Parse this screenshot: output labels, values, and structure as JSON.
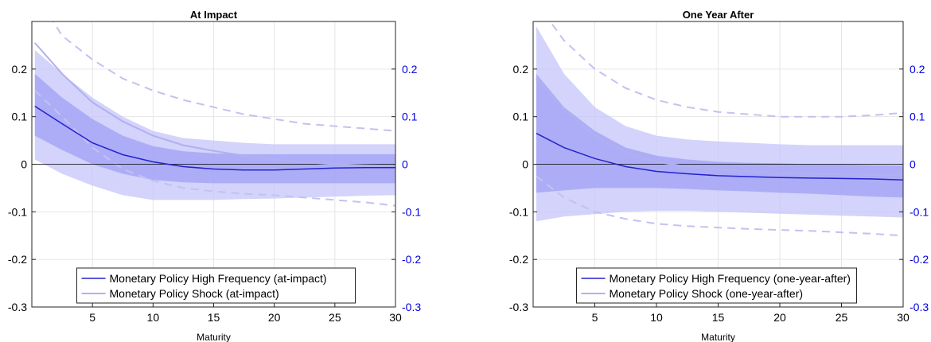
{
  "colors": {
    "hf_line": "#2222cc",
    "hf_band_outer": "#c4c4fa",
    "hf_band_inner": "#9c9cf5",
    "shock_line": "#b0b0f0",
    "shock_dashed": "#c2c2f0",
    "right_axis": "#0000e0",
    "grid": "#e6e6e6"
  },
  "chart_data": [
    {
      "type": "line",
      "title": "At Impact",
      "xlabel": "Maturity",
      "ylabel": "",
      "xlim": [
        0,
        30
      ],
      "ylim": [
        -0.3,
        0.3
      ],
      "x_ticks": [
        5,
        10,
        15,
        20,
        25,
        30
      ],
      "x_tick_labels": [
        "5",
        "10",
        "15",
        "20",
        "25",
        "30"
      ],
      "y_ticks": [
        -0.3,
        -0.2,
        -0.1,
        0,
        0.1,
        0.2
      ],
      "y_tick_labels": [
        "-0.3",
        "-0.2",
        "-0.1",
        "0",
        "0.1",
        "0.2"
      ],
      "y2_ticks": [
        -0.3,
        -0.2,
        -0.1,
        0,
        0.1,
        0.2
      ],
      "y2_tick_labels": [
        "-0.3",
        "-0.2",
        "-0.1",
        "0",
        "0.1",
        "0.2"
      ],
      "grid": true,
      "zero_line": true,
      "legend_position": "bottom-center",
      "x": [
        0.25,
        2.5,
        5,
        7.5,
        10,
        12.5,
        15,
        17.5,
        20,
        22.5,
        25,
        27.5,
        30
      ],
      "series": [
        {
          "name": "Monetary Policy High Frequency (at-impact)",
          "style": "hf",
          "values": [
            0.122,
            0.085,
            0.045,
            0.02,
            0.005,
            -0.005,
            -0.01,
            -0.012,
            -0.012,
            -0.01,
            -0.008,
            -0.007,
            -0.007
          ],
          "band_outer_upper": [
            0.24,
            0.19,
            0.14,
            0.1,
            0.07,
            0.055,
            0.05,
            0.045,
            0.042,
            0.042,
            0.042,
            0.042,
            0.042
          ],
          "band_outer_lower": [
            0.01,
            -0.02,
            -0.045,
            -0.065,
            -0.075,
            -0.075,
            -0.075,
            -0.073,
            -0.072,
            -0.07,
            -0.068,
            -0.066,
            -0.065
          ],
          "band_inner_upper": [
            0.19,
            0.14,
            0.095,
            0.06,
            0.038,
            0.027,
            0.023,
            0.021,
            0.021,
            0.021,
            0.021,
            0.021,
            0.021
          ],
          "band_inner_lower": [
            0.06,
            0.03,
            0.0,
            -0.02,
            -0.033,
            -0.038,
            -0.04,
            -0.04,
            -0.04,
            -0.04,
            -0.04,
            -0.04,
            -0.04
          ]
        },
        {
          "name": "Monetary Policy Shock (at-impact)",
          "style": "shock",
          "values": [
            0.255,
            0.19,
            0.13,
            0.09,
            0.06,
            0.04,
            0.028,
            0.018,
            0.01,
            0.004,
            0.0,
            -0.002,
            -0.003
          ],
          "dashed_upper": [
            0.36,
            0.27,
            0.22,
            0.18,
            0.155,
            0.135,
            0.12,
            0.105,
            0.095,
            0.085,
            0.08,
            0.075,
            0.07
          ],
          "dashed_lower": [
            0.155,
            0.1,
            0.035,
            -0.01,
            -0.035,
            -0.05,
            -0.057,
            -0.062,
            -0.065,
            -0.07,
            -0.075,
            -0.08,
            -0.087
          ]
        }
      ]
    },
    {
      "type": "line",
      "title": "One Year After",
      "xlabel": "Maturity",
      "ylabel": "",
      "xlim": [
        0,
        30
      ],
      "ylim": [
        -0.3,
        0.3
      ],
      "x_ticks": [
        5,
        10,
        15,
        20,
        25,
        30
      ],
      "x_tick_labels": [
        "5",
        "10",
        "15",
        "20",
        "25",
        "30"
      ],
      "y_ticks": [
        -0.3,
        -0.2,
        -0.1,
        0,
        0.1,
        0.2
      ],
      "y_tick_labels": [
        "-0.3",
        "-0.2",
        "-0.1",
        "0",
        "0.1",
        "0.2"
      ],
      "y2_ticks": [
        -0.3,
        -0.2,
        -0.1,
        0,
        0.1,
        0.2
      ],
      "y2_tick_labels": [
        "-0.3",
        "-0.2",
        "-0.1",
        "0",
        "0.1",
        "0.2"
      ],
      "grid": true,
      "zero_line": true,
      "legend_position": "bottom-center",
      "x": [
        0.25,
        2.5,
        5,
        7.5,
        10,
        12.5,
        15,
        17.5,
        20,
        22.5,
        25,
        27.5,
        30
      ],
      "series": [
        {
          "name": "Monetary Policy High Frequency (one-year-after)",
          "style": "hf",
          "values": [
            0.065,
            0.035,
            0.012,
            -0.005,
            -0.015,
            -0.02,
            -0.024,
            -0.026,
            -0.028,
            -0.029,
            -0.03,
            -0.031,
            -0.033
          ],
          "band_outer_upper": [
            0.29,
            0.19,
            0.12,
            0.08,
            0.06,
            0.052,
            0.048,
            0.045,
            0.042,
            0.04,
            0.04,
            0.04,
            0.04
          ],
          "band_outer_lower": [
            -0.12,
            -0.11,
            -0.105,
            -0.1,
            -0.098,
            -0.098,
            -0.1,
            -0.102,
            -0.104,
            -0.106,
            -0.108,
            -0.11,
            -0.112
          ],
          "band_inner_upper": [
            0.19,
            0.12,
            0.07,
            0.035,
            0.018,
            0.01,
            0.005,
            0.003,
            0.002,
            0.0,
            0.0,
            -0.002,
            -0.003
          ],
          "band_inner_lower": [
            -0.06,
            -0.055,
            -0.05,
            -0.05,
            -0.05,
            -0.052,
            -0.055,
            -0.057,
            -0.06,
            -0.062,
            -0.065,
            -0.068,
            -0.07
          ]
        },
        {
          "name": "Monetary Policy Shock (one-year-after)",
          "style": "shock",
          "values": [
            0.18,
            0.115,
            0.06,
            0.025,
            0.005,
            -0.005,
            -0.011,
            -0.015,
            -0.018,
            -0.02,
            -0.021,
            -0.022,
            -0.022
          ],
          "dashed_upper": [
            0.34,
            0.26,
            0.2,
            0.16,
            0.135,
            0.12,
            0.11,
            0.105,
            0.1,
            0.1,
            0.1,
            0.103,
            0.108
          ],
          "dashed_lower": [
            -0.025,
            -0.07,
            -0.1,
            -0.115,
            -0.125,
            -0.13,
            -0.133,
            -0.136,
            -0.138,
            -0.14,
            -0.143,
            -0.146,
            -0.15
          ]
        }
      ]
    }
  ]
}
